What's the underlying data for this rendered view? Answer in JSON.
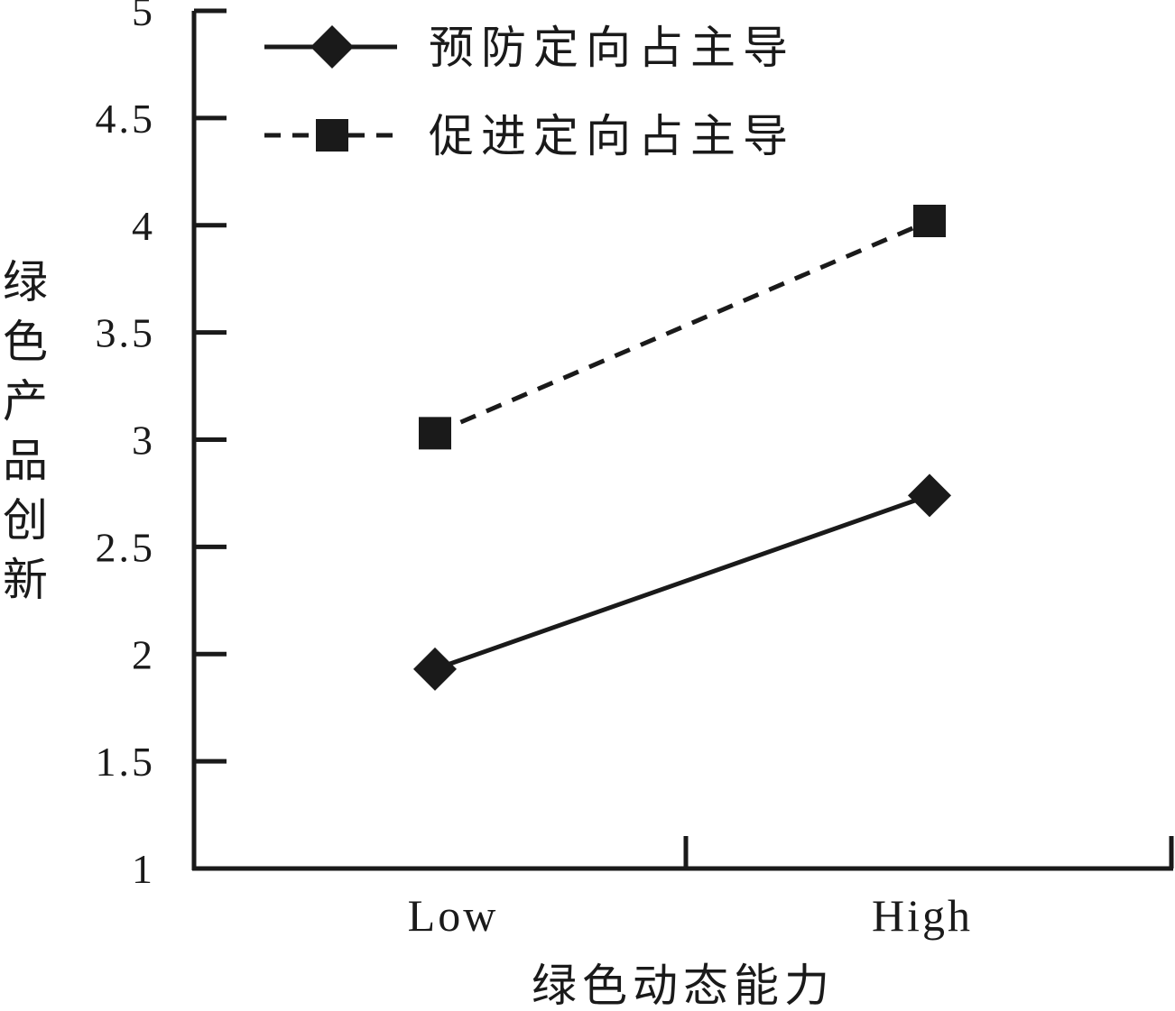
{
  "chart_data": {
    "type": "line",
    "title": "",
    "xlabel": "绿色动态能力",
    "ylabel": "绿色产品创新",
    "ylabel_chars": [
      "绿",
      "色",
      "产",
      "品",
      "创",
      "新"
    ],
    "categories": [
      "Low",
      "High"
    ],
    "y_ticks": [
      "1",
      "1.5",
      "2",
      "2.5",
      "3",
      "3.5",
      "4",
      "4.5",
      "5"
    ],
    "ylim": [
      1,
      5
    ],
    "grid": false,
    "legend_position": "top-left",
    "series": [
      {
        "name": "预防定向占主导",
        "values": [
          1.93,
          2.74
        ],
        "marker": "diamond",
        "line_style": "solid",
        "color": "#1a1a1a"
      },
      {
        "name": "促进定向占主导",
        "values": [
          3.03,
          4.02
        ],
        "marker": "square",
        "line_style": "dashed",
        "color": "#1a1a1a"
      }
    ]
  }
}
